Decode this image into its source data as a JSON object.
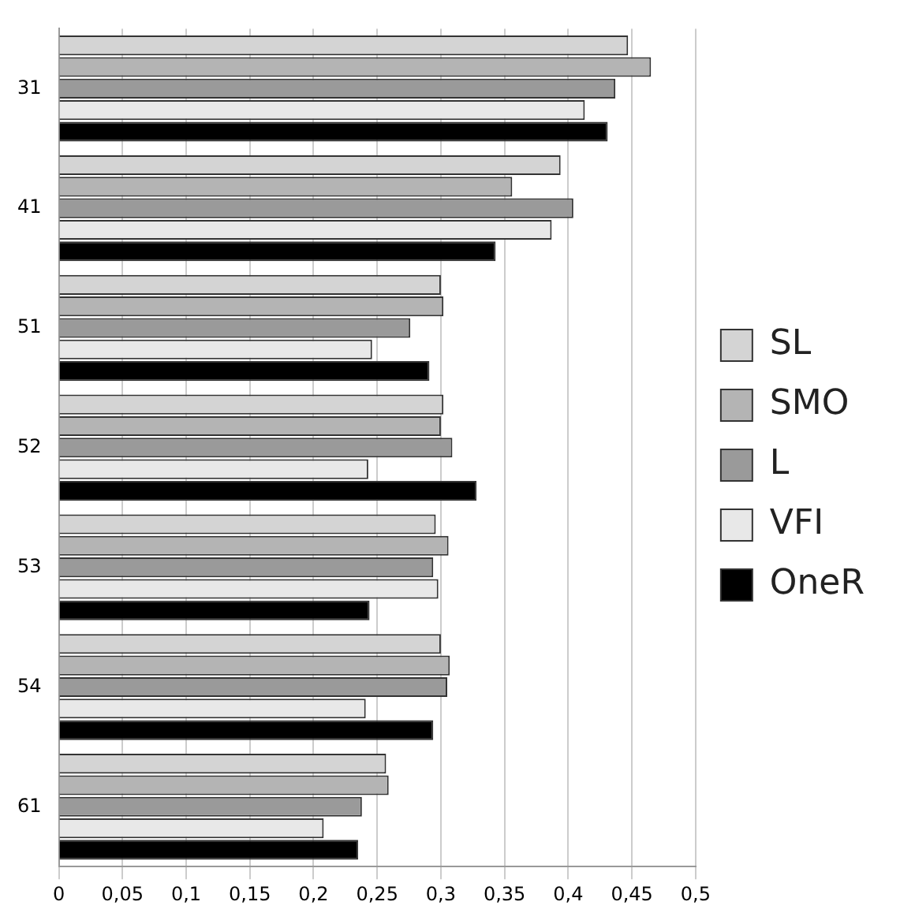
{
  "chart_data": {
    "type": "bar",
    "orientation": "horizontal",
    "categories": [
      "31",
      "41",
      "51",
      "52",
      "53",
      "54",
      "61"
    ],
    "series": [
      {
        "name": "SL",
        "color": "#d4d4d4",
        "values": [
          0.447,
          0.394,
          0.3,
          0.302,
          0.296,
          0.3,
          0.257
        ]
      },
      {
        "name": "SMO",
        "color": "#b4b4b4",
        "values": [
          0.465,
          0.356,
          0.302,
          0.3,
          0.306,
          0.307,
          0.259
        ]
      },
      {
        "name": "L",
        "color": "#9a9a9a",
        "values": [
          0.437,
          0.404,
          0.276,
          0.309,
          0.294,
          0.305,
          0.238
        ]
      },
      {
        "name": "VFI",
        "color": "#e8e8e8",
        "values": [
          0.413,
          0.387,
          0.246,
          0.243,
          0.298,
          0.241,
          0.208
        ]
      },
      {
        "name": "OneR",
        "color": "#000000",
        "values": [
          0.431,
          0.343,
          0.291,
          0.328,
          0.244,
          0.294,
          0.235
        ]
      }
    ],
    "xlim": [
      0,
      0.5
    ],
    "xticks": [
      0,
      {
        "value": 0.05,
        "label": "0,05"
      },
      {
        "value": 0.1,
        "label": "0,1"
      },
      {
        "value": 0.15,
        "label": "0,15"
      },
      {
        "value": 0.2,
        "label": "0,2"
      },
      {
        "value": 0.25,
        "label": "0,25"
      },
      {
        "value": 0.3,
        "label": "0,3"
      },
      {
        "value": 0.35,
        "label": "0,35"
      },
      {
        "value": 0.4,
        "label": "0,4"
      },
      {
        "value": 0.45,
        "label": "0,45"
      },
      {
        "value": 0.5,
        "label": "0,5"
      }
    ],
    "grid": "x",
    "legend": "right"
  }
}
